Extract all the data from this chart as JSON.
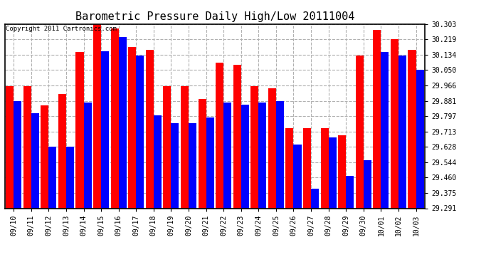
{
  "title": "Barometric Pressure Daily High/Low 20111004",
  "copyright": "Copyright 2011 Cartronics.com",
  "dates": [
    "09/10",
    "09/11",
    "09/12",
    "09/13",
    "09/14",
    "09/15",
    "09/16",
    "09/17",
    "09/18",
    "09/19",
    "09/20",
    "09/21",
    "09/22",
    "09/23",
    "09/24",
    "09/25",
    "09/26",
    "09/27",
    "09/28",
    "09/29",
    "09/30",
    "10/01",
    "10/02",
    "10/03"
  ],
  "highs": [
    29.96,
    29.96,
    29.855,
    29.92,
    30.15,
    30.303,
    30.28,
    30.175,
    30.16,
    29.96,
    29.96,
    29.89,
    30.09,
    30.08,
    29.96,
    29.95,
    29.73,
    29.73,
    29.73,
    29.69,
    30.13,
    30.27,
    30.22,
    30.16
  ],
  "lows": [
    29.88,
    29.815,
    29.63,
    29.63,
    29.87,
    30.155,
    30.23,
    30.13,
    29.8,
    29.76,
    29.76,
    29.79,
    29.87,
    29.86,
    29.87,
    29.88,
    29.64,
    29.4,
    29.68,
    29.47,
    29.555,
    30.15,
    30.13,
    30.05
  ],
  "high_color": "#ff0000",
  "low_color": "#0000ff",
  "background_color": "#ffffff",
  "yticks": [
    29.291,
    29.375,
    29.46,
    29.544,
    29.628,
    29.713,
    29.797,
    29.881,
    29.966,
    30.05,
    30.134,
    30.219,
    30.303
  ],
  "ymin": 29.291,
  "ymax": 30.303,
  "title_fontsize": 11,
  "tick_fontsize": 7,
  "copyright_fontsize": 6.5
}
